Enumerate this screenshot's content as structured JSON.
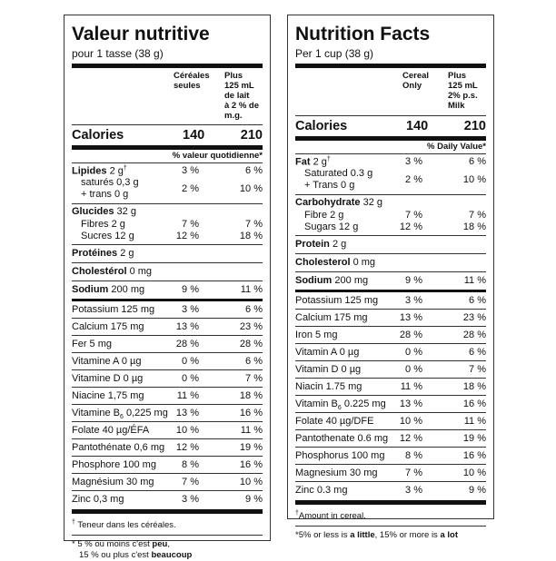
{
  "fr": {
    "title": "Valeur nutritive",
    "serving": "pour 1 tasse (38 g)",
    "col1": [
      "Céréales",
      "seules"
    ],
    "col2": [
      "Plus",
      "125 mL",
      "de lait",
      "à 2 % de",
      "m.g."
    ],
    "calories_label": "Calories",
    "calories_1": "140",
    "calories_2": "210",
    "dv_header": "% valeur quotidienne*",
    "lipides": {
      "name": "Lipides",
      "amount": "2 g",
      "mark": "†",
      "p1": "3 %",
      "p2": "6 %"
    },
    "satures": {
      "line1": "saturés 0,3 g",
      "line2": "+ trans 0 g",
      "p1": "2 %",
      "p2": "10 %"
    },
    "glucides": {
      "name": "Glucides",
      "amount": "32 g"
    },
    "fibres": {
      "label": "Fibres 2 g",
      "p1": "7 %",
      "p2": "7 %"
    },
    "sucres": {
      "label": "Sucres 12 g",
      "p1": "12 %",
      "p2": "18 %"
    },
    "proteines": {
      "name": "Protéines",
      "amount": "2 g"
    },
    "cholesterol": {
      "name": "Cholestérol",
      "amount": "0 mg"
    },
    "sodium": {
      "name": "Sodium",
      "amount": "200 mg",
      "p1": "9 %",
      "p2": "11 %"
    },
    "minerals": [
      {
        "label": "Potassium 125 mg",
        "p1": "3 %",
        "p2": "6 %"
      },
      {
        "label": "Calcium 175 mg",
        "p1": "13 %",
        "p2": "23 %"
      },
      {
        "label": "Fer 5 mg",
        "p1": "28 %",
        "p2": "28 %"
      },
      {
        "label": "Vitamine A 0 µg",
        "p1": "0 %",
        "p2": "6 %"
      },
      {
        "label": "Vitamine D 0 µg",
        "p1": "0 %",
        "p2": "7 %"
      },
      {
        "label": "Niacine 1,75 mg",
        "p1": "11 %",
        "p2": "18 %"
      },
      {
        "label_pre": "Vitamine B",
        "label_sub": "6",
        "label_post": " 0,225 mg",
        "p1": "13 %",
        "p2": "16 %"
      },
      {
        "label": "Folate 40 µg/ÉFA",
        "p1": "10 %",
        "p2": "11 %"
      },
      {
        "label": "Pantothénate 0,6 mg",
        "p1": "12 %",
        "p2": "19 %"
      },
      {
        "label": "Phosphore 100 mg",
        "p1": "8 %",
        "p2": "16 %"
      },
      {
        "label": "Magnésium 30 mg",
        "p1": "7 %",
        "p2": "10 %"
      },
      {
        "label": "Zinc 0,3 mg",
        "p1": "3 %",
        "p2": "9 %"
      }
    ],
    "foot1_mark": "†",
    "foot1": "Teneur dans les céréales.",
    "foot2_a": "* 5 % ou moins c'est ",
    "foot2_b": "peu",
    "foot2_c": ",",
    "foot3_a": "15 % ou plus c'est ",
    "foot3_b": "beaucoup"
  },
  "en": {
    "title": "Nutrition Facts",
    "serving": "Per 1 cup (38 g)",
    "col1": [
      "Cereal",
      "Only"
    ],
    "col2": [
      "Plus",
      "125 mL",
      "2% p.s.",
      "Milk"
    ],
    "calories_label": "Calories",
    "calories_1": "140",
    "calories_2": "210",
    "dv_header": "% Daily Value*",
    "fat": {
      "name": "Fat",
      "amount": "2 g",
      "mark": "†",
      "p1": "3 %",
      "p2": "6 %"
    },
    "saturated": {
      "line1": "Saturated 0.3 g",
      "line2": "+ Trans 0 g",
      "p1": "2 %",
      "p2": "10 %"
    },
    "carb": {
      "name": "Carbohydrate",
      "amount": "32 g"
    },
    "fibre": {
      "label": "Fibre 2 g",
      "p1": "7 %",
      "p2": "7 %"
    },
    "sugars": {
      "label": "Sugars 12 g",
      "p1": "12 %",
      "p2": "18 %"
    },
    "protein": {
      "name": "Protein",
      "amount": "2 g"
    },
    "cholesterol": {
      "name": "Cholesterol",
      "amount": "0 mg"
    },
    "sodium": {
      "name": "Sodium",
      "amount": "200 mg",
      "p1": "9 %",
      "p2": "11 %"
    },
    "minerals": [
      {
        "label": "Potassium 125 mg",
        "p1": "3 %",
        "p2": "6 %"
      },
      {
        "label": "Calcium 175 mg",
        "p1": "13 %",
        "p2": "23 %"
      },
      {
        "label": "Iron 5 mg",
        "p1": "28 %",
        "p2": "28 %"
      },
      {
        "label": "Vitamin A 0 µg",
        "p1": "0 %",
        "p2": "6 %"
      },
      {
        "label": "Vitamin D 0 µg",
        "p1": "0 %",
        "p2": "7 %"
      },
      {
        "label": "Niacin 1.75 mg",
        "p1": "11 %",
        "p2": "18 %"
      },
      {
        "label_pre": "Vitamin B",
        "label_sub": "6",
        "label_post": " 0.225 mg",
        "p1": "13 %",
        "p2": "16 %"
      },
      {
        "label": "Folate 40 µg/DFE",
        "p1": "10 %",
        "p2": "11 %"
      },
      {
        "label": "Pantothenate 0.6 mg",
        "p1": "12 %",
        "p2": "19 %"
      },
      {
        "label": "Phosphorus 100 mg",
        "p1": "8 %",
        "p2": "16 %"
      },
      {
        "label": "Magnesium 30 mg",
        "p1": "7 %",
        "p2": "10 %"
      },
      {
        "label": "Zinc 0.3 mg",
        "p1": "3 %",
        "p2": "9 %"
      }
    ],
    "foot1_mark": "†",
    "foot1": "Amount in cereal.",
    "foot2_a": "*5% or less is ",
    "foot2_b": "a little",
    "foot2_c": ", 15% or more is ",
    "foot2_d": "a lot"
  }
}
